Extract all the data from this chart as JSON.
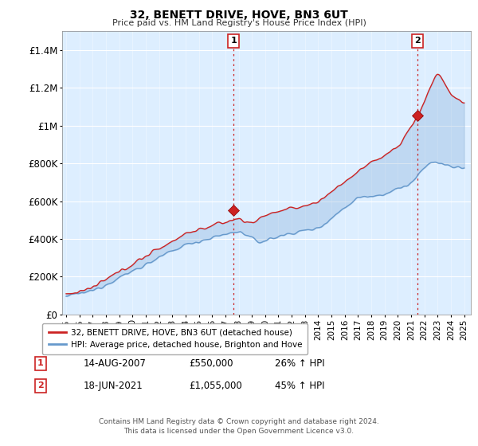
{
  "title": "32, BENETT DRIVE, HOVE, BN3 6UT",
  "subtitle": "Price paid vs. HM Land Registry's House Price Index (HPI)",
  "legend_line1": "32, BENETT DRIVE, HOVE, BN3 6UT (detached house)",
  "legend_line2": "HPI: Average price, detached house, Brighton and Hove",
  "transaction1_date": "14-AUG-2007",
  "transaction1_price": "£550,000",
  "transaction1_hpi": "26% ↑ HPI",
  "transaction1_x": 2007.62,
  "transaction1_y": 550000,
  "transaction2_date": "18-JUN-2021",
  "transaction2_price": "£1,055,000",
  "transaction2_hpi": "45% ↑ HPI",
  "transaction2_x": 2021.46,
  "transaction2_y": 1055000,
  "footer": "Contains HM Land Registry data © Crown copyright and database right 2024.\nThis data is licensed under the Open Government Licence v3.0.",
  "red_color": "#cc2222",
  "blue_color": "#6699cc",
  "bg_color": "#ddeeff",
  "ylim_max": 1500000,
  "yticks": [
    0,
    200000,
    400000,
    600000,
    800000,
    1000000,
    1200000,
    1400000
  ],
  "ytick_labels": [
    "£0",
    "£200K",
    "£400K",
    "£600K",
    "£800K",
    "£1M",
    "£1.2M",
    "£1.4M"
  ],
  "xmin": 1994.7,
  "xmax": 2025.5
}
